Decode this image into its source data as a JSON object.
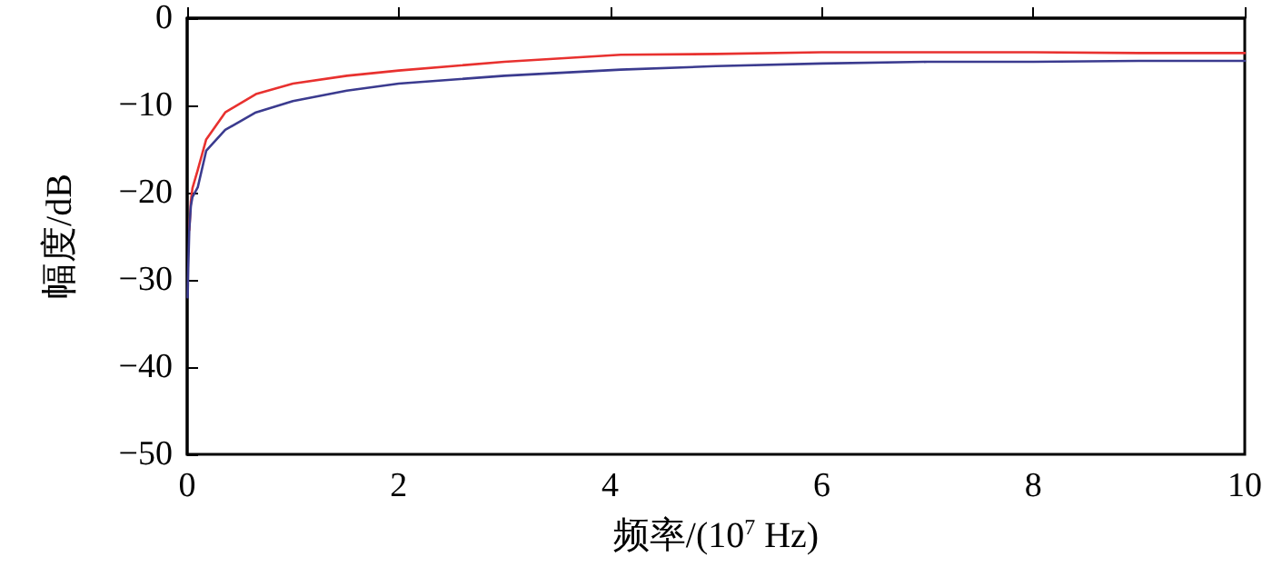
{
  "chart_data": {
    "type": "line",
    "xlabel": "频率/(10$^{7}$ Hz)",
    "ylabel": "幅度/dB",
    "xlim": [
      0,
      10
    ],
    "xticks": [
      0,
      2,
      4,
      6,
      8,
      10
    ],
    "ylim": [
      -50,
      0
    ],
    "yticks": [
      -50,
      -40,
      -30,
      -20,
      -10,
      0
    ],
    "grid": false,
    "marker": "none",
    "line_style": "solid",
    "series": [
      {
        "color": "#e8312f",
        "x": [
          0.02,
          0.035,
          0.05,
          0.1,
          0.18,
          0.36,
          0.65,
          1,
          1.51,
          2,
          3,
          4.1,
          5,
          6,
          7,
          8,
          9,
          10
        ],
        "values": [
          -24.3,
          -21,
          -19.5,
          -17.4,
          -13.9,
          -10.8,
          -8.7,
          -7.5,
          -6.6,
          -6,
          -5,
          -4.2,
          -4.1,
          -3.9,
          -3.9,
          -3.9,
          -4,
          -4
        ]
      },
      {
        "color": "#3b3b8f",
        "x": [
          0.005,
          0.01,
          0.02,
          0.035,
          0.05,
          0.1,
          0.18,
          0.36,
          0.65,
          1,
          1.51,
          2,
          3,
          4.1,
          5,
          6,
          7,
          8,
          9,
          10
        ],
        "values": [
          -32,
          -28.8,
          -24.3,
          -21.5,
          -20.5,
          -19.4,
          -15.2,
          -12.8,
          -10.8,
          -9.5,
          -8.3,
          -7.5,
          -6.6,
          -5.9,
          -5.5,
          -5.2,
          -5,
          -5,
          -4.9,
          -4.9
        ]
      }
    ]
  }
}
